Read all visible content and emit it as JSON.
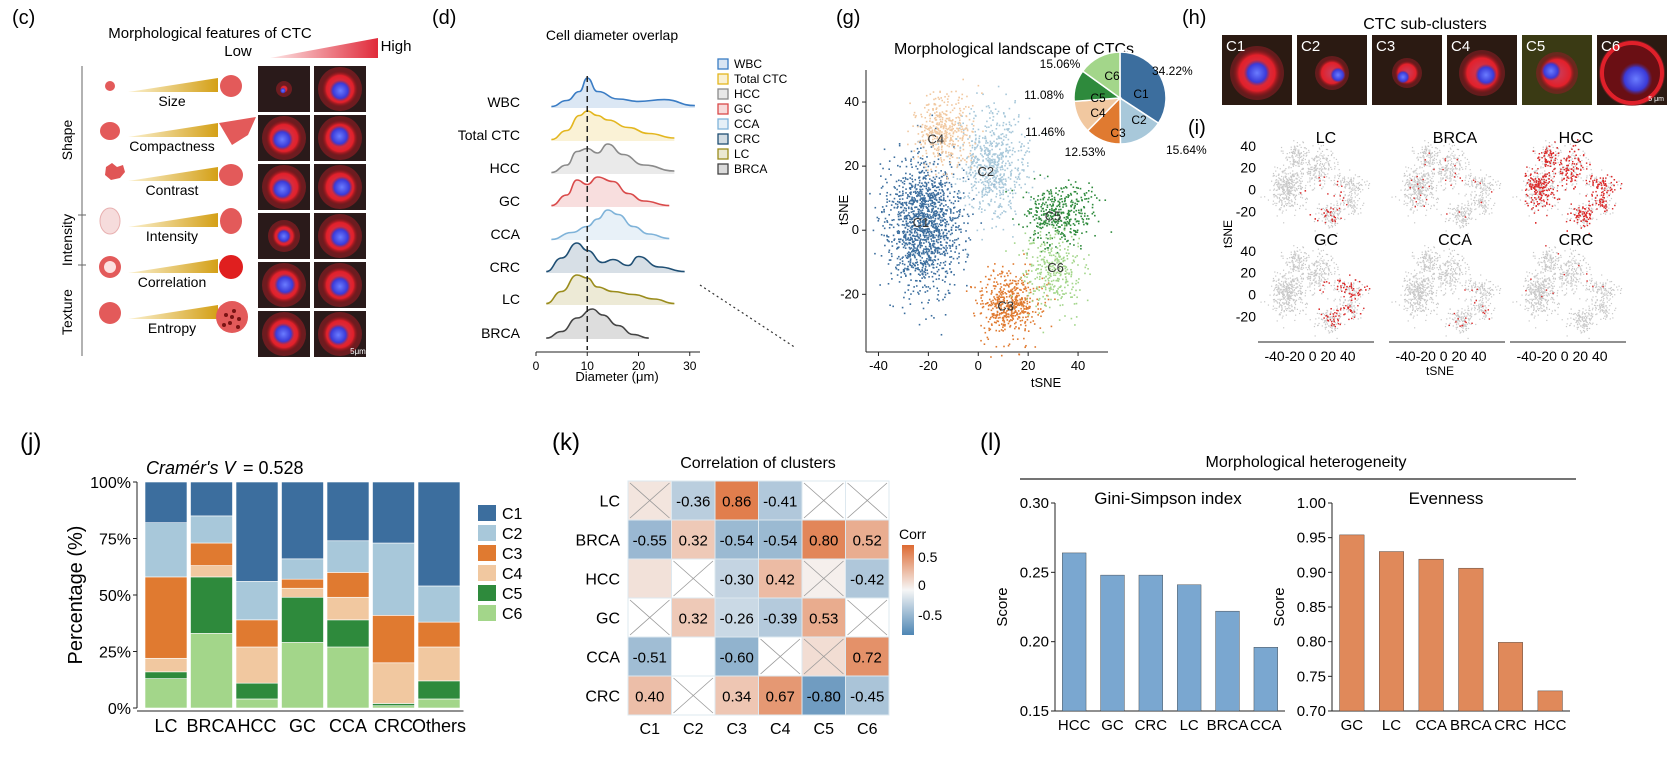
{
  "panels": {
    "c": {
      "label": "(c)",
      "title": "Morphological features of CTC",
      "low": "Low",
      "high": "High",
      "groups": [
        "Shape",
        "Intensity",
        "Texture"
      ],
      "features": [
        "Size",
        "Compactness",
        "Contrast",
        "Intensity",
        "Correlation",
        "Entropy"
      ],
      "scale": "5μm"
    },
    "d": {
      "label": "(d)",
      "title": "Cell diameter overlap",
      "xlabel": "Diameter (μm)",
      "vline": 10
    },
    "g": {
      "label": "(g)",
      "title": "Morphological landscape of CTCs",
      "xlabel": "tSNE",
      "ylabel": "tSNE"
    },
    "h": {
      "label": "(h)",
      "title": "CTC sub-clusters",
      "clusters": [
        "C1",
        "C2",
        "C3",
        "C4",
        "C5",
        "C6"
      ],
      "scale": "5 μm"
    },
    "i": {
      "label": "(i)",
      "xlabel": "tSNE",
      "ylabel": "tSNE",
      "cancers": [
        "LC",
        "BRCA",
        "HCC",
        "GC",
        "CCA",
        "CRC"
      ]
    },
    "j": {
      "label": "(j)",
      "annotation_italic": "Cramér's V",
      "annotation_value": " = 0.528",
      "ylabel": "Percentage (%)"
    },
    "k": {
      "label": "(k)",
      "title": "Correlation of clusters",
      "legend_title": "Corr"
    },
    "l": {
      "label": "(l)",
      "title": "Morphological heterogeneity"
    }
  },
  "colors": {
    "C1": "#3c6e9e",
    "C2": "#a8c8da",
    "C3": "#e07a30",
    "C4": "#f1c8a0",
    "C5": "#2e8a3c",
    "C6": "#a3d68a",
    "blue_bar": "#7aa7d0",
    "orange_bar": "#e0895a",
    "neg": "#4e86b4",
    "pos": "#dd6a32",
    "mark": "#dd2a2a",
    "bg_dot": "#c8c8c8"
  },
  "chart_data": [
    {
      "id": "d",
      "type": "area",
      "title": "Cell diameter overlap",
      "xlabel": "Diameter (μm)",
      "xlim": [
        0,
        32
      ],
      "xticks": [
        0,
        10,
        20,
        30
      ],
      "series": [
        {
          "name": "WBC",
          "color": "#3a7cc4",
          "x": [
            3,
            6,
            8.5,
            10,
            12,
            16,
            20,
            25,
            31
          ],
          "y": [
            0.05,
            0.25,
            0.55,
            1.0,
            0.55,
            0.3,
            0.22,
            0.28,
            0.08
          ]
        },
        {
          "name": "Total CTC",
          "color": "#e3b61e",
          "x": [
            3,
            6,
            8.5,
            10,
            12,
            14,
            18,
            22,
            27
          ],
          "y": [
            0.05,
            0.35,
            0.85,
            1.0,
            0.85,
            0.7,
            0.45,
            0.25,
            0.1
          ]
        },
        {
          "name": "HCC",
          "color": "#8a8a8a",
          "x": [
            3,
            6,
            8,
            10,
            12,
            14,
            17,
            21,
            27
          ],
          "y": [
            0.05,
            0.3,
            0.75,
            0.85,
            0.7,
            1.0,
            0.65,
            0.3,
            0.1
          ]
        },
        {
          "name": "GC",
          "color": "#d94a4a",
          "x": [
            3,
            6,
            8,
            10,
            12,
            15,
            18,
            21,
            26
          ],
          "y": [
            0.05,
            0.4,
            0.9,
            0.75,
            1.0,
            0.85,
            0.45,
            0.2,
            0.05
          ]
        },
        {
          "name": "CCA",
          "color": "#7fb3d9",
          "x": [
            3,
            7,
            10,
            12,
            14,
            16,
            19,
            22,
            26
          ],
          "y": [
            0.02,
            0.25,
            0.45,
            0.7,
            1.0,
            0.85,
            0.45,
            0.2,
            0.05
          ]
        },
        {
          "name": "CRC",
          "color": "#1f4f74",
          "x": [
            2,
            5,
            8,
            10,
            13,
            15,
            18,
            20,
            24,
            29
          ],
          "y": [
            0.05,
            0.5,
            1.0,
            0.75,
            0.35,
            0.45,
            0.25,
            0.55,
            0.2,
            0.05
          ]
        },
        {
          "name": "LC",
          "color": "#9a8c1c",
          "x": [
            2,
            5,
            8,
            10,
            12,
            15,
            19,
            23,
            27
          ],
          "y": [
            0.05,
            0.45,
            1.0,
            0.9,
            0.6,
            0.45,
            0.35,
            0.2,
            0.05
          ]
        },
        {
          "name": "BRCA",
          "color": "#444444",
          "x": [
            2,
            5,
            8,
            11,
            13,
            16,
            19,
            22
          ],
          "y": [
            0.03,
            0.25,
            0.7,
            1.0,
            0.8,
            0.45,
            0.15,
            0.03
          ]
        }
      ]
    },
    {
      "id": "g",
      "type": "scatter",
      "title": "Morphological landscape of CTCs",
      "xlabel": "tSNE",
      "ylabel": "tSNE",
      "xlim": [
        -45,
        52
      ],
      "ylim": [
        -38,
        50
      ],
      "xticks": [
        -40,
        -20,
        0,
        20,
        40
      ],
      "yticks": [
        -20,
        0,
        20,
        40
      ],
      "clusters": [
        {
          "name": "C1",
          "cx": -22,
          "cy": 2,
          "sx": 10,
          "sy": 14,
          "n": 1400
        },
        {
          "name": "C2",
          "cx": 5,
          "cy": 21,
          "sx": 9,
          "sy": 11,
          "n": 650
        },
        {
          "name": "C3",
          "cx": 12,
          "cy": -23,
          "sx": 8,
          "sy": 7,
          "n": 500
        },
        {
          "name": "C4",
          "cx": -14,
          "cy": 31,
          "sx": 7,
          "sy": 8,
          "n": 420
        },
        {
          "name": "C5",
          "cx": 32,
          "cy": 5,
          "sx": 9,
          "sy": 6,
          "n": 380
        },
        {
          "name": "C6",
          "cx": 30,
          "cy": -12,
          "sx": 8,
          "sy": 8,
          "n": 320
        }
      ],
      "pie": [
        {
          "name": "C1",
          "pct": 34.22,
          "label": "34.22%"
        },
        {
          "name": "C2",
          "pct": 15.64,
          "label": "15.64%"
        },
        {
          "name": "C3",
          "pct": 12.53,
          "label": "12.53%"
        },
        {
          "name": "C4",
          "pct": 11.46,
          "label": "11.46%"
        },
        {
          "name": "C5",
          "pct": 11.08,
          "label": "11.08%"
        },
        {
          "name": "C6",
          "pct": 15.06,
          "label": "15.06%"
        }
      ]
    },
    {
      "id": "i",
      "type": "scatter",
      "xlabel": "tSNE",
      "ylabel": "tSNE",
      "xticks_text": "-40-20 0  20 40",
      "yticks": [
        40,
        20,
        0,
        -20
      ],
      "panels": [
        {
          "name": "LC",
          "hx": 8,
          "hy": -10,
          "hs": 10,
          "n": 250
        },
        {
          "name": "BRCA",
          "hx": 0,
          "hy": 0,
          "hs": 20,
          "n": 40
        },
        {
          "name": "HCC",
          "hx": -20,
          "hy": 5,
          "hs": 15,
          "n": 700
        },
        {
          "name": "GC",
          "hx": 28,
          "hy": -5,
          "hs": 12,
          "n": 450
        },
        {
          "name": "CCA",
          "hx": 20,
          "hy": -15,
          "hs": 10,
          "n": 110
        },
        {
          "name": "CRC",
          "hx": 5,
          "hy": 15,
          "hs": 20,
          "n": 15
        }
      ]
    },
    {
      "id": "j",
      "type": "bar",
      "stacked": true,
      "ylabel": "Percentage (%)",
      "yticks": [
        "100%",
        "75%",
        "50%",
        "25%",
        "0%"
      ],
      "categories": [
        "LC",
        "BRCA",
        "HCC",
        "GC",
        "CCA",
        "CRC",
        "Others"
      ],
      "series": [
        {
          "name": "C6",
          "values": [
            13,
            33,
            4,
            29,
            27,
            1,
            4
          ]
        },
        {
          "name": "C5",
          "values": [
            3,
            25,
            7,
            20,
            12,
            1,
            8
          ]
        },
        {
          "name": "C4",
          "values": [
            6,
            5,
            16,
            4,
            10,
            18,
            15
          ]
        },
        {
          "name": "C3",
          "values": [
            36,
            10,
            12,
            4,
            11,
            21,
            11
          ]
        },
        {
          "name": "C2",
          "values": [
            24,
            12,
            17,
            9,
            14,
            32,
            16
          ]
        },
        {
          "name": "C1",
          "values": [
            18,
            15,
            44,
            34,
            26,
            27,
            46
          ]
        }
      ],
      "legend": [
        "C1",
        "C2",
        "C3",
        "C4",
        "C5",
        "C6"
      ]
    },
    {
      "id": "k",
      "type": "heatmap",
      "title": "Correlation of clusters",
      "rows": [
        "LC",
        "BRCA",
        "HCC",
        "GC",
        "CCA",
        "CRC"
      ],
      "cols": [
        "C1",
        "C2",
        "C3",
        "C4",
        "C5",
        "C6"
      ],
      "values": [
        [
          0.12,
          -0.36,
          0.86,
          -0.41,
          null,
          null
        ],
        [
          -0.55,
          0.32,
          -0.54,
          -0.54,
          0.8,
          0.52
        ],
        [
          0.15,
          null,
          -0.3,
          0.42,
          0.05,
          -0.42
        ],
        [
          null,
          0.32,
          -0.26,
          -0.39,
          0.53,
          null
        ],
        [
          -0.51,
          null,
          -0.6,
          null,
          0.18,
          0.72
        ],
        [
          0.4,
          null,
          0.34,
          0.67,
          -0.8,
          -0.45
        ]
      ],
      "labels": [
        [
          "",
          "-0.36",
          "0.86",
          "-0.41",
          "",
          ""
        ],
        [
          "-0.55",
          "0.32",
          "-0.54",
          "-0.54",
          "0.80",
          "0.52"
        ],
        [
          "",
          "",
          "-0.30",
          "0.42",
          "",
          "-0.42"
        ],
        [
          "",
          "0.32",
          "-0.26",
          "-0.39",
          "0.53",
          ""
        ],
        [
          "-0.51",
          "",
          "-0.60",
          "",
          "",
          "0.72"
        ],
        [
          "0.40",
          "",
          "0.34",
          "0.67",
          "-0.80",
          "-0.45"
        ]
      ],
      "crossed": [
        [
          0,
          0
        ],
        [
          0,
          4
        ],
        [
          0,
          5
        ],
        [
          2,
          1
        ],
        [
          2,
          4
        ],
        [
          3,
          0
        ],
        [
          3,
          5
        ],
        [
          4,
          3
        ],
        [
          4,
          4
        ],
        [
          5,
          1
        ]
      ],
      "legend_title": "Corr",
      "legend_ticks": [
        "0.5",
        "0",
        "-0.5"
      ]
    },
    {
      "id": "l1",
      "type": "bar",
      "title": "Gini-Simpson index",
      "ylabel": "Score",
      "ylim": [
        0.15,
        0.3
      ],
      "yticks": [
        0.15,
        0.2,
        0.25,
        0.3
      ],
      "ytick_labels": [
        "0.15",
        "0.20",
        "0.25",
        "0.30"
      ],
      "categories": [
        "HCC",
        "GC",
        "CRC",
        "LC",
        "BRCA",
        "CCA"
      ],
      "values": [
        0.264,
        0.248,
        0.248,
        0.241,
        0.222,
        0.196
      ]
    },
    {
      "id": "l2",
      "type": "bar",
      "title": "Evenness",
      "ylabel": "Score",
      "ylim": [
        0.7,
        1.0
      ],
      "yticks": [
        0.7,
        0.75,
        0.8,
        0.85,
        0.9,
        0.95,
        1.0
      ],
      "ytick_labels": [
        "0.70",
        "0.75",
        "0.80",
        "0.85",
        "0.90",
        "0.95",
        "1.00"
      ],
      "categories": [
        "GC",
        "LC",
        "CCA",
        "BRCA",
        "CRC",
        "HCC"
      ],
      "values": [
        0.954,
        0.93,
        0.919,
        0.906,
        0.799,
        0.729
      ]
    }
  ]
}
